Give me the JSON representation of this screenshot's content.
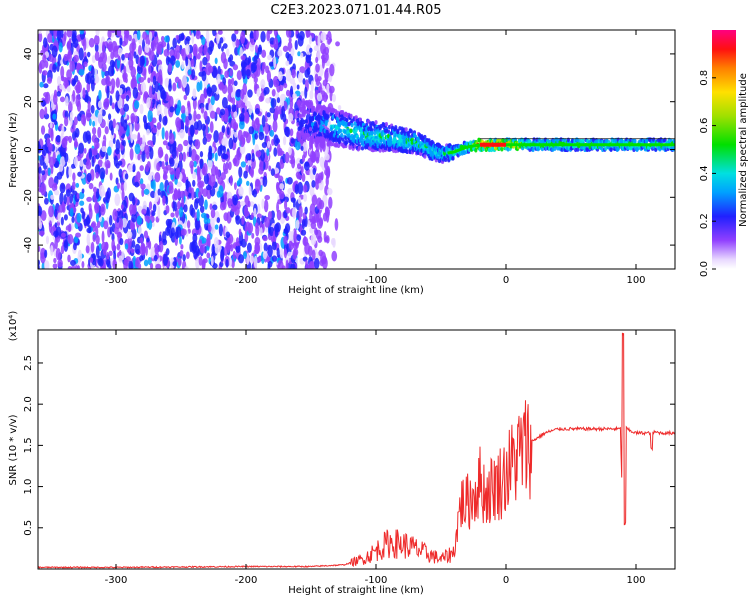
{
  "title": "C2E3.2023.071.01.44.R05",
  "colors": {
    "snr_line": "#ee2b2b",
    "spectrum_points": "#6a0ae6",
    "ridge_cyan": "#10d0d0",
    "ridge_green": "#20e040",
    "ridge_red": "#e41a1c"
  },
  "chart_data": [
    {
      "type": "heatmap",
      "title": "",
      "xlabel": "Height of straight line (km)",
      "ylabel": "Frequency (Hz)",
      "xlim": [
        -360,
        130
      ],
      "ylim": [
        -50,
        50
      ],
      "x_ticks": [
        -300,
        -200,
        -100,
        0,
        100
      ],
      "y_ticks": [
        -40,
        -20,
        0,
        20,
        40
      ],
      "colorbar": {
        "label": "Normalized spectral amplitude",
        "range": [
          0.0,
          1.0
        ],
        "ticks": [
          0.0,
          0.2,
          0.4,
          0.6,
          0.8
        ],
        "tick_labels": [
          "0.0",
          "0.2",
          "0.4",
          "0.6",
          "0.8"
        ]
      },
      "noise_region_x": [
        -360,
        -135
      ],
      "ridge": {
        "x": [
          -155,
          -130,
          -110,
          -90,
          -70,
          -50,
          -40,
          -30,
          -20,
          -10,
          0,
          20,
          50,
          80,
          100,
          130
        ],
        "y": [
          12,
          9,
          6,
          5,
          3,
          -2,
          -1,
          1,
          2,
          2,
          2,
          2,
          2,
          2,
          2,
          2
        ],
        "amplitude": [
          0.2,
          0.4,
          0.45,
          0.45,
          0.45,
          0.4,
          0.45,
          0.5,
          0.9,
          0.9,
          0.85,
          0.5,
          0.5,
          0.5,
          0.5,
          0.5
        ]
      }
    },
    {
      "type": "line",
      "title": "",
      "xlabel": "Height of straight line (km)",
      "ylabel": "SNR (10 * v/v)",
      "y_multiplier_label": "(x10⁴)",
      "xlim": [
        -360,
        130
      ],
      "ylim": [
        0,
        2.9
      ],
      "x_ticks": [
        -300,
        -200,
        -100,
        0,
        100
      ],
      "y_ticks": [
        0.5,
        1.0,
        1.5,
        2.0,
        2.5
      ],
      "y_tick_labels": [
        "0.5",
        "1.0",
        "1.5",
        "2.0",
        "2.5"
      ],
      "series": [
        {
          "x": [
            -360,
            -300,
            -200,
            -150,
            -125,
            -110,
            -100,
            -90,
            -80,
            -70,
            -60,
            -50,
            -40,
            -35,
            -30,
            -25,
            -20,
            -15,
            -10,
            -5,
            0,
            10,
            20,
            30,
            40,
            60,
            80,
            88,
            90,
            92,
            95,
            100,
            110,
            115,
            120,
            130
          ],
          "y": [
            0.02,
            0.02,
            0.03,
            0.03,
            0.05,
            0.12,
            0.22,
            0.32,
            0.3,
            0.25,
            0.18,
            0.12,
            0.2,
            0.8,
            0.8,
            0.9,
            1.05,
            0.9,
            1.0,
            1.05,
            1.15,
            1.4,
            1.55,
            1.65,
            1.7,
            1.7,
            1.7,
            1.7,
            0.55,
            1.72,
            1.68,
            1.65,
            1.65,
            1.66,
            1.65,
            1.65
          ]
        }
      ]
    }
  ]
}
